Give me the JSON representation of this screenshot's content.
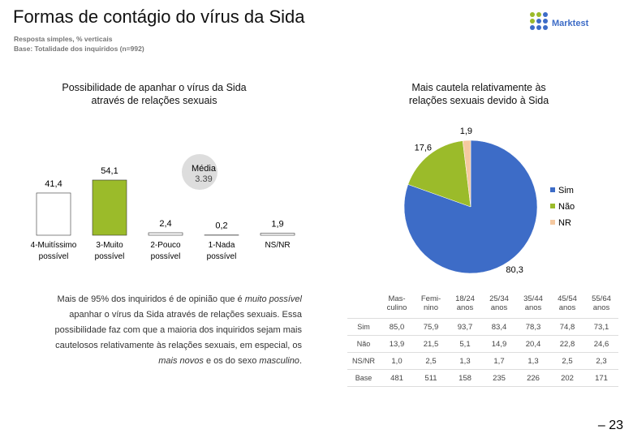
{
  "title": "Formas de contágio do vírus da Sida",
  "subtitle": [
    "Resposta simples, % verticais",
    "Base: Totalidade dos inquiridos (n=992)"
  ],
  "logo": "Marktest",
  "chart_data": [
    {
      "type": "bar",
      "title": "Possibilidade de apanhar o vírus da Sida\natravés de relações sexuais",
      "categories": [
        "4-Muitíssimo\npossível",
        "3-Muito\npossível",
        "2-Pouco\npossível",
        "1-Nada\npossível",
        "NS/NR"
      ],
      "values": [
        41.4,
        54.1,
        2.4,
        0.2,
        1.9
      ],
      "value_labels": [
        "41,4",
        "54,1",
        "2,4",
        "0,2",
        "1,9"
      ],
      "colors": [
        "#ffffff",
        "#9bbb2a",
        "#ffffff",
        "#ffffff",
        "#ffffff"
      ],
      "mean_label": "Média",
      "mean_value": 3.39
    },
    {
      "type": "pie",
      "title": "Mais cautela relativamente às\nrelações sexuais devido à Sida",
      "categories": [
        "Sim",
        "Não",
        "NR"
      ],
      "values": [
        80.3,
        17.6,
        1.9
      ],
      "value_labels": [
        "80,3",
        "17,6",
        "1,9"
      ],
      "colors": [
        "#3d6cc7",
        "#9bbb2a",
        "#f5c9a0"
      ],
      "legend": "right"
    }
  ],
  "text": [
    {
      "text": "Mais de 95% dos inquiridos é de opinião que é ",
      "italic": false
    },
    {
      "text": "muito possível",
      "italic": true
    },
    {
      "text": " apanhar o vírus da Sida através de relações sexuais. Essa possibilidade faz com que a maioria dos inquiridos sejam mais cautelosos relativamente às relações sexuais, em especial, os ",
      "italic": false
    },
    {
      "text": "mais novos",
      "italic": true
    },
    {
      "text": " e os do sexo ",
      "italic": false
    },
    {
      "text": "masculino",
      "italic": true
    },
    {
      "text": ".",
      "italic": false
    }
  ],
  "table": {
    "header": [
      "Mas-\nculino",
      "Femi-\nnino",
      "18/24\nanos",
      "25/34\nanos",
      "35/44\nanos",
      "45/54\nanos",
      "55/64\nanos"
    ],
    "rows": [
      [
        "Sim",
        "85,0",
        "75,9",
        "93,7",
        "83,4",
        "78,3",
        "74,8",
        "73,1"
      ],
      [
        "Não",
        "13,9",
        "21,5",
        "5,1",
        "14,9",
        "20,4",
        "22,8",
        "24,6"
      ],
      [
        "NS/NR",
        "1,0",
        "2,5",
        "1,3",
        "1,7",
        "1,3",
        "2,5",
        "2,3"
      ],
      [
        "Base",
        "481",
        "511",
        "158",
        "235",
        "226",
        "202",
        "171"
      ]
    ]
  },
  "page_number": "– 23"
}
